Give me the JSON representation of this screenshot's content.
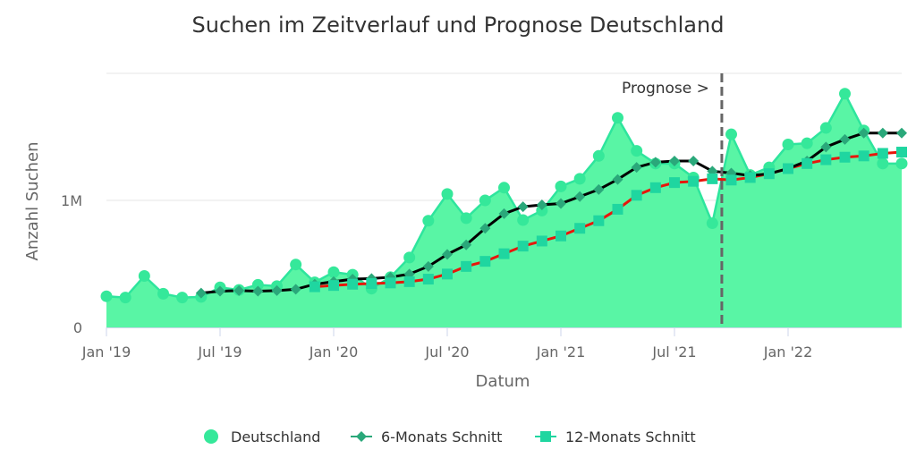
{
  "chart_data": {
    "type": "area",
    "title": "Suchen im Zeitverlauf und Prognose Deutschland",
    "xlabel": "Datum",
    "ylabel": "Anzahl Suchen",
    "ylim": [
      0,
      2000000
    ],
    "y_ticks": [
      {
        "value": 0,
        "label": "0"
      },
      {
        "value": 1000000,
        "label": "1M"
      },
      {
        "value": 2000000,
        "label": ""
      }
    ],
    "x_ticks": [
      {
        "index": 0,
        "label": "Jan '19"
      },
      {
        "index": 6,
        "label": "Jul '19"
      },
      {
        "index": 12,
        "label": "Jan '20"
      },
      {
        "index": 18,
        "label": "Jul '20"
      },
      {
        "index": 24,
        "label": "Jan '21"
      },
      {
        "index": 30,
        "label": "Jul '21"
      },
      {
        "index": 36,
        "label": "Jan '22"
      }
    ],
    "months": [
      "2019-01",
      "2019-02",
      "2019-03",
      "2019-04",
      "2019-05",
      "2019-06",
      "2019-07",
      "2019-08",
      "2019-09",
      "2019-10",
      "2019-11",
      "2019-12",
      "2020-01",
      "2020-02",
      "2020-03",
      "2020-04",
      "2020-05",
      "2020-06",
      "2020-07",
      "2020-08",
      "2020-09",
      "2020-10",
      "2020-11",
      "2020-12",
      "2021-01",
      "2021-02",
      "2021-03",
      "2021-04",
      "2021-05",
      "2021-06",
      "2021-07",
      "2021-08",
      "2021-09",
      "2021-10",
      "2021-11",
      "2021-12",
      "2022-01",
      "2022-02",
      "2022-03",
      "2022-04",
      "2022-05",
      "2022-06",
      "2022-07"
    ],
    "forecast_start_index": 32.5,
    "forecast_label": "Prognose >",
    "colors": {
      "area": "#59f5a5",
      "area_line": "#2ee59d",
      "dots": "#35e89a",
      "six_month_marker": "#2aa87a",
      "twelve_month_marker": "#1fd6a0",
      "six_month_line": "#000000",
      "twelve_month_line": "#e8160c",
      "forecast_line": "#666666"
    },
    "series": [
      {
        "name": "Deutschland",
        "values": [
          245000,
          235000,
          405000,
          265000,
          235000,
          240000,
          315000,
          295000,
          335000,
          325000,
          495000,
          355000,
          435000,
          415000,
          305000,
          395000,
          550000,
          840000,
          1050000,
          860000,
          1000000,
          1100000,
          845000,
          920000,
          1110000,
          1170000,
          1350000,
          1650000,
          1390000,
          1290000,
          1290000,
          1180000,
          820000,
          1520000,
          1200000,
          1260000,
          1440000,
          1450000,
          1570000,
          1840000,
          1550000,
          1290000,
          1290000
        ]
      },
      {
        "name": "6-Monats Schnitt",
        "values": [
          null,
          null,
          null,
          null,
          null,
          270000,
          285000,
          290000,
          285000,
          290000,
          300000,
          340000,
          360000,
          380000,
          385000,
          395000,
          420000,
          480000,
          575000,
          650000,
          780000,
          895000,
          950000,
          965000,
          975000,
          1030000,
          1085000,
          1165000,
          1260000,
          1300000,
          1310000,
          1310000,
          1230000,
          1215000,
          1195000,
          1210000,
          1250000,
          1310000,
          1420000,
          1480000,
          1530000,
          1530000,
          1530000
        ]
      },
      {
        "name": "12-Monats Schnitt",
        "values": [
          null,
          null,
          null,
          null,
          null,
          null,
          null,
          null,
          null,
          null,
          null,
          320000,
          330000,
          340000,
          345000,
          350000,
          360000,
          380000,
          420000,
          480000,
          520000,
          580000,
          640000,
          680000,
          720000,
          780000,
          840000,
          930000,
          1040000,
          1100000,
          1140000,
          1150000,
          1170000,
          1160000,
          1180000,
          1210000,
          1250000,
          1290000,
          1320000,
          1340000,
          1350000,
          1370000,
          1380000
        ]
      }
    ],
    "legend": [
      {
        "name": "Deutschland",
        "marker": "circle"
      },
      {
        "name": "6-Monats Schnitt",
        "marker": "diamond"
      },
      {
        "name": "12-Monats Schnitt",
        "marker": "square"
      }
    ]
  }
}
